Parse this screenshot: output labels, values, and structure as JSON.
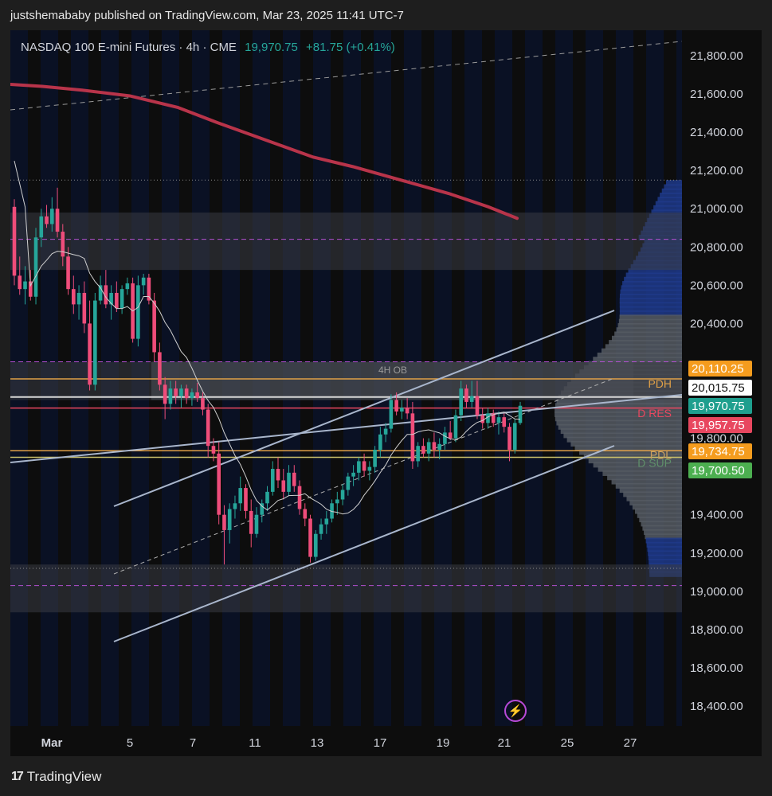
{
  "header": {
    "publisher_text": "justshemababy published on TradingView.com, Mar 23, 2025 11:41 UTC-7"
  },
  "symbol": {
    "name": "NASDAQ 100 E-mini Futures",
    "interval": "4h",
    "exchange": "CME",
    "sep": "·",
    "last": "19,970.75",
    "change": "+81.75 (+0.41%)"
  },
  "footer": {
    "brand": "TradingView"
  },
  "colors": {
    "up": "#26a69a",
    "down": "#ef4d7a",
    "ma200": "#b8344a",
    "ma_fast": "#cfcfcf",
    "channel": "#a9b6cc",
    "zone": "#3a3d44",
    "pdh": "#e0a047",
    "orange_tag": "#f59c1e",
    "teal_tag": "#1e9f8e",
    "red_tag": "#e8475f",
    "green_tag": "#4caf50",
    "white_tag": "#ffffff",
    "profile_blue": "#1e3a8a",
    "profile_gray": "#555a63",
    "dashed_magenta": "#b24fd0",
    "bolt": "#b74ad8"
  },
  "chart_data": {
    "type": "candlestick",
    "ylim": [
      18300,
      21950
    ],
    "y_ticks": [
      "21,800.00",
      "21,600.00",
      "21,400.00",
      "21,200.00",
      "21,000.00",
      "20,800.00",
      "20,600.00",
      "20,400.00",
      "19,800.00",
      "19,400.00",
      "19,200.00",
      "19,000.00",
      "18,800.00",
      "18,600.00",
      "18,400.00"
    ],
    "y_tick_values": [
      21800,
      21600,
      21400,
      21200,
      21000,
      20800,
      20600,
      20400,
      19800,
      19400,
      19200,
      19000,
      18800,
      18600,
      18400
    ],
    "x_ticks": [
      "Mar",
      "5",
      "7",
      "11",
      "13",
      "17",
      "19",
      "21",
      "25",
      "27"
    ],
    "candles": [
      {
        "o": 21010,
        "h": 21050,
        "l": 20600,
        "c": 20650
      },
      {
        "o": 20650,
        "h": 20750,
        "l": 20550,
        "c": 20580
      },
      {
        "o": 20580,
        "h": 20700,
        "l": 20500,
        "c": 20620
      },
      {
        "o": 20620,
        "h": 20680,
        "l": 20520,
        "c": 20540
      },
      {
        "o": 20540,
        "h": 20900,
        "l": 20500,
        "c": 20850
      },
      {
        "o": 20850,
        "h": 21000,
        "l": 20800,
        "c": 20960
      },
      {
        "o": 20960,
        "h": 21020,
        "l": 20900,
        "c": 20920
      },
      {
        "o": 20920,
        "h": 21060,
        "l": 20880,
        "c": 21000
      },
      {
        "o": 21000,
        "h": 21110,
        "l": 20850,
        "c": 20880
      },
      {
        "o": 20880,
        "h": 20920,
        "l": 20700,
        "c": 20750
      },
      {
        "o": 20750,
        "h": 20800,
        "l": 20550,
        "c": 20580
      },
      {
        "o": 20580,
        "h": 20650,
        "l": 20450,
        "c": 20500
      },
      {
        "o": 20500,
        "h": 20600,
        "l": 20420,
        "c": 20560
      },
      {
        "o": 20560,
        "h": 20620,
        "l": 20350,
        "c": 20400
      },
      {
        "o": 20400,
        "h": 20520,
        "l": 20050,
        "c": 20080
      },
      {
        "o": 20080,
        "h": 20560,
        "l": 20050,
        "c": 20520
      },
      {
        "o": 20520,
        "h": 20650,
        "l": 20500,
        "c": 20600
      },
      {
        "o": 20600,
        "h": 20680,
        "l": 20480,
        "c": 20500
      },
      {
        "o": 20500,
        "h": 20600,
        "l": 20420,
        "c": 20560
      },
      {
        "o": 20560,
        "h": 20620,
        "l": 20460,
        "c": 20480
      },
      {
        "o": 20480,
        "h": 20600,
        "l": 20450,
        "c": 20580
      },
      {
        "o": 20580,
        "h": 20640,
        "l": 20550,
        "c": 20610
      },
      {
        "o": 20610,
        "h": 20640,
        "l": 20300,
        "c": 20320
      },
      {
        "o": 20320,
        "h": 20650,
        "l": 20280,
        "c": 20600
      },
      {
        "o": 20600,
        "h": 20660,
        "l": 20550,
        "c": 20640
      },
      {
        "o": 20640,
        "h": 20660,
        "l": 20500,
        "c": 20520
      },
      {
        "o": 20520,
        "h": 20560,
        "l": 20200,
        "c": 20250
      },
      {
        "o": 20250,
        "h": 20300,
        "l": 20050,
        "c": 20080
      },
      {
        "o": 20080,
        "h": 20120,
        "l": 19900,
        "c": 19980
      },
      {
        "o": 19980,
        "h": 20100,
        "l": 19950,
        "c": 20060
      },
      {
        "o": 20060,
        "h": 20100,
        "l": 19980,
        "c": 20020
      },
      {
        "o": 20020,
        "h": 20080,
        "l": 19960,
        "c": 20060
      },
      {
        "o": 20060,
        "h": 20080,
        "l": 19980,
        "c": 20010
      },
      {
        "o": 20010,
        "h": 20060,
        "l": 19970,
        "c": 20040
      },
      {
        "o": 20040,
        "h": 20090,
        "l": 19990,
        "c": 20010
      },
      {
        "o": 20010,
        "h": 20040,
        "l": 19920,
        "c": 19950
      },
      {
        "o": 19950,
        "h": 19980,
        "l": 19700,
        "c": 19760
      },
      {
        "o": 19760,
        "h": 19800,
        "l": 19680,
        "c": 19720
      },
      {
        "o": 19720,
        "h": 19780,
        "l": 19350,
        "c": 19400
      },
      {
        "o": 19400,
        "h": 19450,
        "l": 19140,
        "c": 19320
      },
      {
        "o": 19320,
        "h": 19460,
        "l": 19250,
        "c": 19430
      },
      {
        "o": 19430,
        "h": 19500,
        "l": 19380,
        "c": 19460
      },
      {
        "o": 19460,
        "h": 19600,
        "l": 19420,
        "c": 19540
      },
      {
        "o": 19540,
        "h": 19560,
        "l": 19380,
        "c": 19420
      },
      {
        "o": 19420,
        "h": 19480,
        "l": 19230,
        "c": 19300
      },
      {
        "o": 19300,
        "h": 19440,
        "l": 19280,
        "c": 19400
      },
      {
        "o": 19400,
        "h": 19480,
        "l": 19360,
        "c": 19460
      },
      {
        "o": 19460,
        "h": 19550,
        "l": 19420,
        "c": 19520
      },
      {
        "o": 19520,
        "h": 19680,
        "l": 19500,
        "c": 19640
      },
      {
        "o": 19640,
        "h": 19700,
        "l": 19540,
        "c": 19580
      },
      {
        "o": 19580,
        "h": 19640,
        "l": 19480,
        "c": 19520
      },
      {
        "o": 19520,
        "h": 19660,
        "l": 19500,
        "c": 19620
      },
      {
        "o": 19620,
        "h": 19660,
        "l": 19520,
        "c": 19550
      },
      {
        "o": 19550,
        "h": 19580,
        "l": 19400,
        "c": 19430
      },
      {
        "o": 19430,
        "h": 19460,
        "l": 19340,
        "c": 19380
      },
      {
        "o": 19380,
        "h": 19400,
        "l": 19150,
        "c": 19180
      },
      {
        "o": 19180,
        "h": 19320,
        "l": 19160,
        "c": 19300
      },
      {
        "o": 19300,
        "h": 19380,
        "l": 19270,
        "c": 19350
      },
      {
        "o": 19350,
        "h": 19420,
        "l": 19300,
        "c": 19380
      },
      {
        "o": 19380,
        "h": 19480,
        "l": 19360,
        "c": 19460
      },
      {
        "o": 19460,
        "h": 19520,
        "l": 19400,
        "c": 19480
      },
      {
        "o": 19480,
        "h": 19560,
        "l": 19450,
        "c": 19530
      },
      {
        "o": 19530,
        "h": 19620,
        "l": 19500,
        "c": 19600
      },
      {
        "o": 19600,
        "h": 19660,
        "l": 19550,
        "c": 19620
      },
      {
        "o": 19620,
        "h": 19700,
        "l": 19580,
        "c": 19680
      },
      {
        "o": 19680,
        "h": 19720,
        "l": 19600,
        "c": 19630
      },
      {
        "o": 19630,
        "h": 19680,
        "l": 19580,
        "c": 19650
      },
      {
        "o": 19650,
        "h": 19760,
        "l": 19620,
        "c": 19740
      },
      {
        "o": 19740,
        "h": 19860,
        "l": 19700,
        "c": 19820
      },
      {
        "o": 19820,
        "h": 19880,
        "l": 19780,
        "c": 19850
      },
      {
        "o": 19850,
        "h": 20030,
        "l": 19830,
        "c": 20000
      },
      {
        "o": 20000,
        "h": 20040,
        "l": 19920,
        "c": 19940
      },
      {
        "o": 19940,
        "h": 20000,
        "l": 19900,
        "c": 19960
      },
      {
        "o": 19960,
        "h": 20010,
        "l": 19900,
        "c": 19930
      },
      {
        "o": 19930,
        "h": 19990,
        "l": 19640,
        "c": 19680
      },
      {
        "o": 19680,
        "h": 19780,
        "l": 19650,
        "c": 19760
      },
      {
        "o": 19760,
        "h": 19800,
        "l": 19700,
        "c": 19720
      },
      {
        "o": 19720,
        "h": 19800,
        "l": 19680,
        "c": 19780
      },
      {
        "o": 19780,
        "h": 19830,
        "l": 19700,
        "c": 19740
      },
      {
        "o": 19740,
        "h": 19800,
        "l": 19690,
        "c": 19770
      },
      {
        "o": 19770,
        "h": 19860,
        "l": 19740,
        "c": 19830
      },
      {
        "o": 19830,
        "h": 19890,
        "l": 19790,
        "c": 19800
      },
      {
        "o": 19800,
        "h": 19950,
        "l": 19780,
        "c": 19920
      },
      {
        "o": 19920,
        "h": 20100,
        "l": 19890,
        "c": 20060
      },
      {
        "o": 20060,
        "h": 20080,
        "l": 19960,
        "c": 19990
      },
      {
        "o": 19990,
        "h": 20100,
        "l": 19960,
        "c": 20020
      },
      {
        "o": 20020,
        "h": 20100,
        "l": 19900,
        "c": 19920
      },
      {
        "o": 19920,
        "h": 19960,
        "l": 19850,
        "c": 19880
      },
      {
        "o": 19880,
        "h": 19960,
        "l": 19850,
        "c": 19930
      },
      {
        "o": 19930,
        "h": 19950,
        "l": 19860,
        "c": 19880
      },
      {
        "o": 19880,
        "h": 19940,
        "l": 19820,
        "c": 19910
      },
      {
        "o": 19910,
        "h": 19930,
        "l": 19830,
        "c": 19860
      },
      {
        "o": 19860,
        "h": 19880,
        "l": 19680,
        "c": 19740
      },
      {
        "o": 19740,
        "h": 19900,
        "l": 19720,
        "c": 19880
      },
      {
        "o": 19880,
        "h": 19990,
        "l": 19870,
        "c": 19970
      }
    ],
    "ma200": [
      [
        0,
        21650
      ],
      [
        40,
        21640
      ],
      [
        90,
        21620
      ],
      [
        150,
        21590
      ],
      [
        210,
        21530
      ],
      [
        260,
        21450
      ],
      [
        320,
        21360
      ],
      [
        380,
        21270
      ],
      [
        430,
        21220
      ],
      [
        490,
        21150
      ],
      [
        550,
        21080
      ],
      [
        600,
        21010
      ],
      [
        636,
        20950
      ]
    ],
    "levels": [
      {
        "label": "PDH",
        "value": 20110.25,
        "tag": "20,110.25",
        "tag_color": "orange_tag",
        "text_color": "pdh"
      },
      {
        "label": "",
        "value": 20015.75,
        "tag": "20,015.75",
        "tag_color": "white_tag",
        "text_color": "white_tag"
      },
      {
        "label": "",
        "value": 19970.75,
        "tag": "19,970.75",
        "tag_color": "teal_tag",
        "text_color": "teal_tag"
      },
      {
        "label": "D RES",
        "value": 19957.75,
        "tag": "19,957.75",
        "tag_color": "red_tag",
        "text_color": "red_tag"
      },
      {
        "label": "PDL",
        "value": 19734.75,
        "tag": "19,734.75",
        "tag_color": "orange_tag",
        "text_color": "pdh"
      },
      {
        "label": "D SUP",
        "value": 19700.5,
        "tag": "19,700.50",
        "tag_color": "green_tag",
        "text_color": "green_tag"
      }
    ],
    "zones": [
      {
        "label": "",
        "top": 20980,
        "bottom": 20680
      },
      {
        "label": "4H OB",
        "top": 20200,
        "bottom": 20000
      },
      {
        "label": "",
        "top": 19140,
        "bottom": 18890
      }
    ],
    "annotations": [
      "4H OB",
      "PDH",
      "D RES",
      "PDL",
      "D SUP"
    ]
  }
}
